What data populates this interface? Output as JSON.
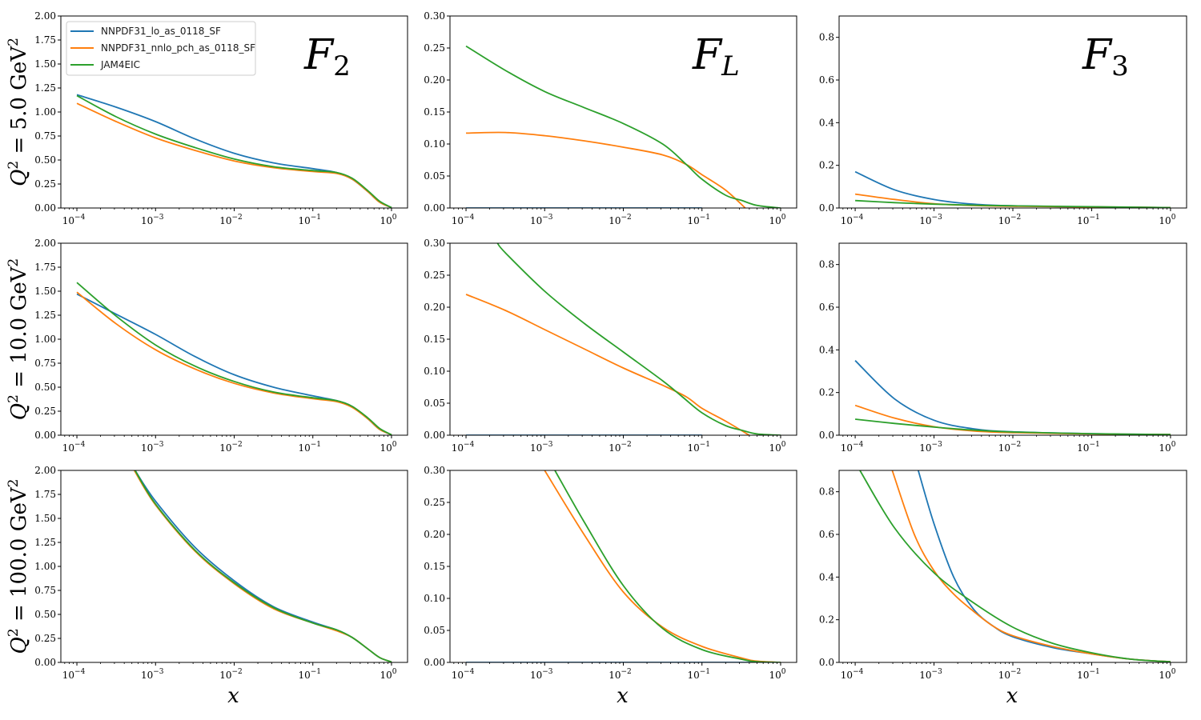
{
  "chart_data": {
    "type": "line",
    "layout": "3x3 grid",
    "x_scale": "log",
    "xlim_log10": [
      -4.204,
      0.204
    ],
    "x_ticks": [
      {
        "exp": -4,
        "label_base": "10",
        "label_exp": "−4"
      },
      {
        "exp": -3,
        "label_base": "10",
        "label_exp": "−3"
      },
      {
        "exp": -2,
        "label_base": "10",
        "label_exp": "−2"
      },
      {
        "exp": -1,
        "label_base": "10",
        "label_exp": "−1"
      },
      {
        "exp": 0,
        "label_base": "10",
        "label_exp": "0"
      }
    ],
    "xlabel": "x",
    "legend": {
      "placement": "upper-left of first panel",
      "entries": [
        {
          "name": "NNPDF31_lo_as_0118_SF",
          "color": "#1f77b4"
        },
        {
          "name": "NNPDF31_nnlo_pch_as_0118_SF",
          "color": "#ff7f0e"
        },
        {
          "name": "JAM4EIC",
          "color": "#2ca02c"
        }
      ]
    },
    "columns": [
      {
        "name": "F2",
        "label_main": "F",
        "label_sub": "2",
        "ylim": [
          0,
          2.0
        ],
        "yticks": [
          "0.00",
          "0.25",
          "0.50",
          "0.75",
          "1.00",
          "1.25",
          "1.50",
          "1.75",
          "2.00"
        ],
        "ytick_values": [
          0,
          0.25,
          0.5,
          0.75,
          1.0,
          1.25,
          1.5,
          1.75,
          2.0
        ]
      },
      {
        "name": "FL",
        "label_main": "F",
        "label_sub": "L",
        "ylim": [
          0,
          0.3
        ],
        "yticks": [
          "0.00",
          "0.05",
          "0.10",
          "0.15",
          "0.20",
          "0.25",
          "0.30"
        ],
        "ytick_values": [
          0,
          0.05,
          0.1,
          0.15,
          0.2,
          0.25,
          0.3
        ]
      },
      {
        "name": "F3",
        "label_main": "F",
        "label_sub": "3",
        "ylim": [
          0,
          0.9
        ],
        "yticks": [
          "0.0",
          "0.2",
          "0.4",
          "0.6",
          "0.8"
        ],
        "ytick_values": [
          0,
          0.2,
          0.4,
          0.6,
          0.8
        ]
      }
    ],
    "rows": [
      {
        "q2": "5.0",
        "ylabel_prefix": "Q",
        "ylabel_sup": "2",
        "ylabel_mid": " = 5.0 GeV",
        "ylabel_sup2": "2"
      },
      {
        "q2": "10.0",
        "ylabel_prefix": "Q",
        "ylabel_sup": "2",
        "ylabel_mid": " = 10.0 GeV",
        "ylabel_sup2": "2"
      },
      {
        "q2": "100.0",
        "ylabel_prefix": "Q",
        "ylabel_sup": "2",
        "ylabel_mid": " = 100.0 GeV",
        "ylabel_sup2": "2"
      }
    ],
    "panels": [
      [
        {
          "series": [
            {
              "name": "NNPDF31_lo_as_0118_SF",
              "log10x": [
                -4,
                -3.5,
                -3,
                -2.5,
                -2,
                -1.5,
                -1,
                -0.7,
                -0.5,
                -0.3,
                -0.15,
                0
              ],
              "y": [
                1.18,
                1.05,
                0.9,
                0.72,
                0.57,
                0.47,
                0.41,
                0.37,
                0.3,
                0.17,
                0.06,
                0.005
              ]
            },
            {
              "name": "NNPDF31_nnlo_pch_as_0118_SF",
              "log10x": [
                -4,
                -3.5,
                -3,
                -2.5,
                -2,
                -1.5,
                -1,
                -0.7,
                -0.5,
                -0.3,
                -0.15,
                0
              ],
              "y": [
                1.09,
                0.9,
                0.73,
                0.6,
                0.49,
                0.42,
                0.38,
                0.36,
                0.3,
                0.17,
                0.06,
                0.005
              ]
            },
            {
              "name": "JAM4EIC",
              "log10x": [
                -4,
                -3.5,
                -3,
                -2.5,
                -2,
                -1.5,
                -1,
                -0.7,
                -0.5,
                -0.3,
                -0.15,
                0
              ],
              "y": [
                1.17,
                0.95,
                0.77,
                0.63,
                0.51,
                0.43,
                0.39,
                0.37,
                0.31,
                0.18,
                0.07,
                0.005
              ]
            }
          ]
        },
        {
          "series": [
            {
              "name": "NNPDF31_lo_as_0118_SF",
              "log10x": [
                -4,
                -1
              ],
              "y": [
                0,
                0
              ]
            },
            {
              "name": "NNPDF31_nnlo_pch_as_0118_SF",
              "log10x": [
                -4,
                -3.5,
                -3,
                -2.5,
                -2,
                -1.5,
                -1.2,
                -1,
                -0.7,
                -0.45
              ],
              "y": [
                0.117,
                0.118,
                0.113,
                0.105,
                0.095,
                0.083,
                0.068,
                0.052,
                0.028,
                0.0
              ]
            },
            {
              "name": "JAM4EIC",
              "log10x": [
                -4,
                -3.5,
                -3,
                -2.5,
                -2,
                -1.5,
                -1.2,
                -1,
                -0.7,
                -0.5,
                -0.3,
                0
              ],
              "y": [
                0.253,
                0.215,
                0.182,
                0.157,
                0.132,
                0.1,
                0.068,
                0.045,
                0.02,
                0.012,
                0.004,
                0.0
              ]
            }
          ]
        },
        {
          "series": [
            {
              "name": "NNPDF31_lo_as_0118_SF",
              "log10x": [
                -4,
                -3.5,
                -3,
                -2.5,
                -2,
                -1,
                0
              ],
              "y": [
                0.17,
                0.085,
                0.04,
                0.018,
                0.01,
                0.005,
                0.002
              ]
            },
            {
              "name": "NNPDF31_nnlo_pch_as_0118_SF",
              "log10x": [
                -4,
                -3.5,
                -3,
                -2.5,
                -2,
                -1,
                0
              ],
              "y": [
                0.065,
                0.04,
                0.02,
                0.012,
                0.008,
                0.005,
                0.002
              ]
            },
            {
              "name": "JAM4EIC",
              "log10x": [
                -4,
                -3.5,
                -3,
                -2.5,
                -2,
                -1,
                0
              ],
              "y": [
                0.035,
                0.025,
                0.018,
                0.013,
                0.01,
                0.006,
                0.002
              ]
            }
          ]
        }
      ],
      [
        {
          "series": [
            {
              "name": "NNPDF31_lo_as_0118_SF",
              "log10x": [
                -4,
                -3.5,
                -3,
                -2.5,
                -2,
                -1.5,
                -1,
                -0.7,
                -0.5,
                -0.3,
                -0.15,
                0
              ],
              "y": [
                1.47,
                1.26,
                1.05,
                0.82,
                0.63,
                0.5,
                0.41,
                0.36,
                0.3,
                0.17,
                0.06,
                0.005
              ]
            },
            {
              "name": "NNPDF31_nnlo_pch_as_0118_SF",
              "log10x": [
                -4,
                -3.5,
                -3,
                -2.5,
                -2,
                -1.5,
                -1,
                -0.7,
                -0.5,
                -0.3,
                -0.15,
                0
              ],
              "y": [
                1.49,
                1.16,
                0.89,
                0.69,
                0.54,
                0.44,
                0.38,
                0.35,
                0.29,
                0.17,
                0.06,
                0.005
              ]
            },
            {
              "name": "JAM4EIC",
              "log10x": [
                -4,
                -3.5,
                -3,
                -2.5,
                -2,
                -1.5,
                -1,
                -0.7,
                -0.5,
                -0.3,
                -0.15,
                0
              ],
              "y": [
                1.59,
                1.24,
                0.94,
                0.72,
                0.56,
                0.45,
                0.39,
                0.36,
                0.3,
                0.18,
                0.07,
                0.005
              ]
            }
          ]
        },
        {
          "series": [
            {
              "name": "NNPDF31_lo_as_0118_SF",
              "log10x": [
                -4,
                -1
              ],
              "y": [
                0,
                0
              ]
            },
            {
              "name": "NNPDF31_nnlo_pch_as_0118_SF",
              "log10x": [
                -4,
                -3.5,
                -3,
                -2.5,
                -2,
                -1.5,
                -1.2,
                -1,
                -0.7,
                -0.4
              ],
              "y": [
                0.22,
                0.195,
                0.165,
                0.135,
                0.105,
                0.078,
                0.06,
                0.042,
                0.022,
                0.0
              ]
            },
            {
              "name": "JAM4EIC",
              "log10x": [
                -3.6,
                -3.5,
                -3,
                -2.5,
                -2,
                -1.5,
                -1.25,
                -1,
                -0.7,
                -0.5,
                -0.3,
                0
              ],
              "y": [
                0.3,
                0.285,
                0.225,
                0.175,
                0.13,
                0.085,
                0.06,
                0.035,
                0.015,
                0.008,
                0.002,
                0.0
              ]
            }
          ]
        },
        {
          "series": [
            {
              "name": "NNPDF31_lo_as_0118_SF",
              "log10x": [
                -4,
                -3.5,
                -3,
                -2.5,
                -2,
                -1,
                0
              ],
              "y": [
                0.35,
                0.17,
                0.07,
                0.03,
                0.016,
                0.007,
                0.003
              ]
            },
            {
              "name": "NNPDF31_nnlo_pch_as_0118_SF",
              "log10x": [
                -4,
                -3.5,
                -3,
                -2.5,
                -2,
                -1,
                0
              ],
              "y": [
                0.14,
                0.08,
                0.04,
                0.02,
                0.012,
                0.006,
                0.003
              ]
            },
            {
              "name": "JAM4EIC",
              "log10x": [
                -4,
                -3.5,
                -3,
                -2.5,
                -2,
                -1,
                0
              ],
              "y": [
                0.075,
                0.055,
                0.038,
                0.024,
                0.015,
                0.007,
                0.003
              ]
            }
          ]
        }
      ],
      [
        {
          "series": [
            {
              "name": "NNPDF31_lo_as_0118_SF",
              "log10x": [
                -3.26,
                -3,
                -2.5,
                -2,
                -1.5,
                -1,
                -0.7,
                -0.5,
                -0.3,
                -0.15,
                0
              ],
              "y": [
                2.0,
                1.68,
                1.2,
                0.85,
                0.58,
                0.42,
                0.34,
                0.26,
                0.14,
                0.05,
                0.005
              ]
            },
            {
              "name": "NNPDF31_nnlo_pch_as_0118_SF",
              "log10x": [
                -3.27,
                -3,
                -2.5,
                -2,
                -1.5,
                -1,
                -0.7,
                -0.5,
                -0.3,
                -0.15,
                0
              ],
              "y": [
                2.0,
                1.64,
                1.16,
                0.82,
                0.56,
                0.41,
                0.33,
                0.26,
                0.14,
                0.05,
                0.005
              ]
            },
            {
              "name": "JAM4EIC",
              "log10x": [
                -3.26,
                -3,
                -2.5,
                -2,
                -1.5,
                -1,
                -0.7,
                -0.5,
                -0.3,
                -0.15,
                0
              ],
              "y": [
                2.0,
                1.65,
                1.17,
                0.83,
                0.57,
                0.41,
                0.34,
                0.26,
                0.14,
                0.05,
                0.005
              ]
            }
          ]
        },
        {
          "series": [
            {
              "name": "NNPDF31_lo_as_0118_SF",
              "log10x": [
                -4,
                0
              ],
              "y": [
                0,
                0
              ]
            },
            {
              "name": "NNPDF31_nnlo_pch_as_0118_SF",
              "log10x": [
                -3.0,
                -2.5,
                -2,
                -1.5,
                -1,
                -0.5,
                -0.3,
                0
              ],
              "y": [
                0.3,
                0.2,
                0.11,
                0.055,
                0.025,
                0.007,
                0.002,
                0.0
              ]
            },
            {
              "name": "JAM4EIC",
              "log10x": [
                -2.87,
                -2.5,
                -2,
                -1.5,
                -1,
                -0.5,
                -0.3,
                0
              ],
              "y": [
                0.3,
                0.22,
                0.12,
                0.053,
                0.02,
                0.005,
                0.001,
                0.0
              ]
            }
          ]
        },
        {
          "series": [
            {
              "name": "NNPDF31_lo_as_0118_SF",
              "log10x": [
                -3.2,
                -3,
                -2.75,
                -2.5,
                -2.25,
                -2,
                -1.5,
                -1,
                -0.5,
                0
              ],
              "y": [
                0.9,
                0.65,
                0.4,
                0.25,
                0.17,
                0.12,
                0.07,
                0.04,
                0.015,
                0.003
              ]
            },
            {
              "name": "NNPDF31_nnlo_pch_as_0118_SF",
              "log10x": [
                -3.53,
                -3.25,
                -3,
                -2.75,
                -2.5,
                -2.25,
                -2,
                -1.5,
                -1,
                -0.5,
                0
              ],
              "y": [
                0.9,
                0.6,
                0.43,
                0.32,
                0.24,
                0.17,
                0.125,
                0.075,
                0.04,
                0.015,
                0.003
              ]
            },
            {
              "name": "JAM4EIC",
              "log10x": [
                -3.94,
                -3.5,
                -3,
                -2.5,
                -2,
                -1.5,
                -1,
                -0.5,
                0
              ],
              "y": [
                0.9,
                0.63,
                0.42,
                0.28,
                0.165,
                0.09,
                0.045,
                0.015,
                0.003
              ]
            }
          ]
        }
      ]
    ]
  }
}
